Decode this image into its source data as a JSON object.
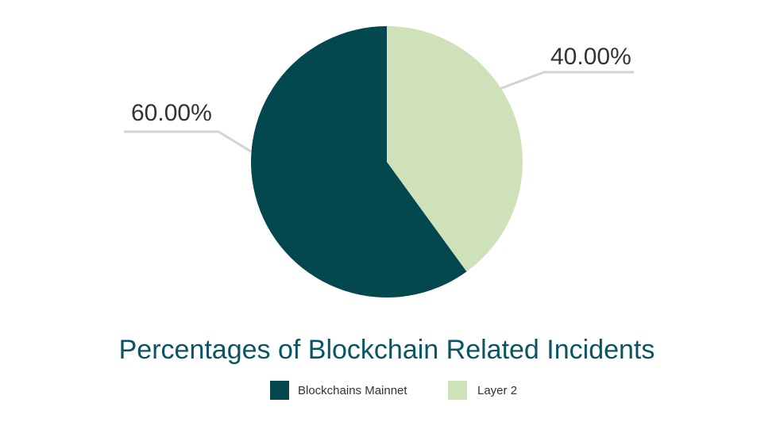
{
  "chart_data": {
    "type": "pie",
    "title": "Percentages of Blockchain Related Incidents",
    "slices": [
      {
        "label": "Blockchains Mainnet",
        "value": 60.0,
        "value_label": "60.00%",
        "color": "#03474F"
      },
      {
        "label": "Layer 2",
        "value": 40.0,
        "value_label": "40.00%",
        "color": "#CFE1B9"
      }
    ],
    "legend_position": "bottom-center",
    "leader_line_color": "#D3D3D3",
    "title_color": "#0B5563",
    "label_text_color": "#333333"
  }
}
